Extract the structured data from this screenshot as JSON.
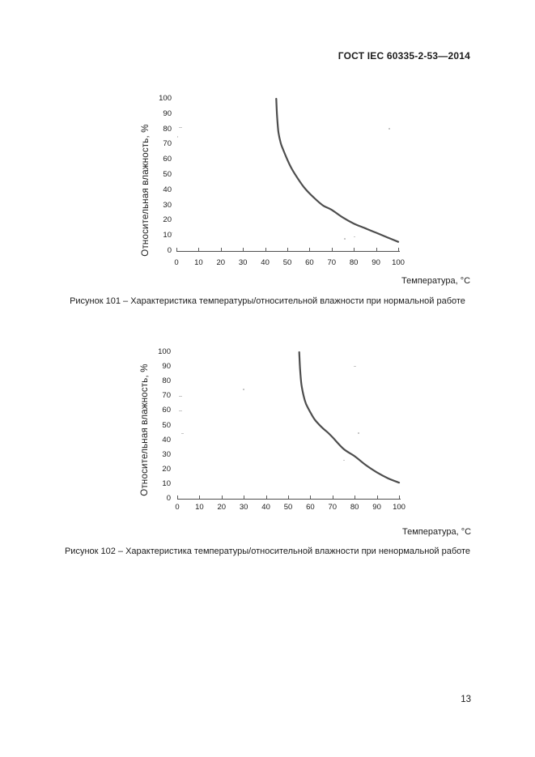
{
  "page": {
    "header_title": "ГОСТ IEC 60335-2-53—2014",
    "page_number": "13"
  },
  "chart_data": [
    {
      "id": "figure-101",
      "type": "line",
      "title": "Рисунок 101 – Характеристика температуры/относительной влажности при нормальной работе",
      "xlabel": "Температура, °С",
      "ylabel": "Относительная влажность, %",
      "xlim": [
        0,
        100
      ],
      "ylim": [
        0,
        100
      ],
      "xticks": [
        0,
        10,
        20,
        30,
        40,
        50,
        60,
        70,
        80,
        90,
        100
      ],
      "yticks": [
        0,
        10,
        20,
        30,
        40,
        50,
        60,
        70,
        80,
        90,
        100
      ],
      "grid": false,
      "legend_position": "none",
      "series": [
        {
          "name": "temperature-humidity-limit-normal",
          "points": [
            [
              45,
              100
            ],
            [
              45.4,
              88
            ],
            [
              46,
              78
            ],
            [
              47,
              71
            ],
            [
              48,
              67
            ],
            [
              50,
              60
            ],
            [
              52,
              54
            ],
            [
              55,
              47
            ],
            [
              58,
              41
            ],
            [
              62,
              35
            ],
            [
              66,
              30
            ],
            [
              70,
              27
            ],
            [
              75,
              22
            ],
            [
              80,
              18
            ],
            [
              85,
              15
            ],
            [
              90,
              12
            ],
            [
              95,
              9
            ],
            [
              100,
              6
            ]
          ]
        }
      ]
    },
    {
      "id": "figure-102",
      "type": "line",
      "title": "Рисунок 102 – Характеристика температуры/относительной влажности при ненормальной работе",
      "xlabel": "Температура, °С",
      "ylabel": "Относительная влажность, %",
      "xlim": [
        0,
        100
      ],
      "ylim": [
        0,
        100
      ],
      "xticks": [
        0,
        10,
        20,
        30,
        40,
        50,
        60,
        70,
        80,
        90,
        100
      ],
      "yticks": [
        0,
        10,
        20,
        30,
        40,
        50,
        60,
        70,
        80,
        90,
        100
      ],
      "grid": false,
      "legend_position": "none",
      "series": [
        {
          "name": "temperature-humidity-limit-abnormal",
          "points": [
            [
              55,
              100
            ],
            [
              55.4,
              88
            ],
            [
              56,
              78
            ],
            [
              57,
              70
            ],
            [
              58,
              65
            ],
            [
              60,
              59
            ],
            [
              62,
              54
            ],
            [
              65,
              49
            ],
            [
              68,
              45
            ],
            [
              70,
              42
            ],
            [
              75,
              34
            ],
            [
              80,
              29
            ],
            [
              85,
              23
            ],
            [
              90,
              18
            ],
            [
              95,
              14
            ],
            [
              100,
              11
            ]
          ]
        }
      ]
    }
  ]
}
